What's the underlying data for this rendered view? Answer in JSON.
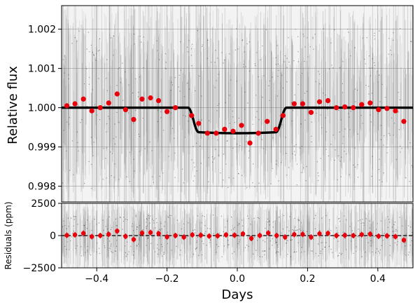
{
  "chart_data": [
    {
      "type": "scatter",
      "panel": "top",
      "ylabel": "Relative flux",
      "xlim": [
        -0.5,
        0.5
      ],
      "ylim": [
        0.9976,
        1.0026
      ],
      "yticks": [
        0.998,
        0.999,
        1.0,
        1.001,
        1.002
      ],
      "ytick_labels": [
        "0.998",
        "0.999",
        "1.000",
        "1.001",
        "1.002"
      ],
      "grid": true,
      "point_color": "#e8000b",
      "model_color": "#000000",
      "raw_data_color": "#555555",
      "model": {
        "baseline": 1.0,
        "depth_flux": 0.99935,
        "ingress": [
          -0.14,
          -0.11
        ],
        "egress": [
          0.11,
          0.14
        ]
      },
      "binned_points": [
        {
          "x": -0.485,
          "y": 1.00005,
          "err": 0.00012
        },
        {
          "x": -0.462,
          "y": 1.0001,
          "err": 0.00012
        },
        {
          "x": -0.438,
          "y": 1.00022,
          "err": 0.00012
        },
        {
          "x": -0.414,
          "y": 0.99992,
          "err": 0.00012
        },
        {
          "x": -0.39,
          "y": 1.0,
          "err": 0.00012
        },
        {
          "x": -0.366,
          "y": 1.00012,
          "err": 0.00012
        },
        {
          "x": -0.342,
          "y": 1.00035,
          "err": 0.00012
        },
        {
          "x": -0.318,
          "y": 0.99995,
          "err": 0.00012
        },
        {
          "x": -0.295,
          "y": 0.9997,
          "err": 0.00012
        },
        {
          "x": -0.271,
          "y": 1.00022,
          "err": 0.00012
        },
        {
          "x": -0.247,
          "y": 1.00025,
          "err": 0.00012
        },
        {
          "x": -0.224,
          "y": 1.00018,
          "err": 0.00012
        },
        {
          "x": -0.2,
          "y": 0.9999,
          "err": 0.00012
        },
        {
          "x": -0.176,
          "y": 1.0,
          "err": 0.00012
        },
        {
          "x": -0.13,
          "y": 0.9998,
          "err": 0.00012
        },
        {
          "x": -0.11,
          "y": 0.9996,
          "err": 0.00012
        },
        {
          "x": -0.085,
          "y": 0.99935,
          "err": 0.00012
        },
        {
          "x": -0.06,
          "y": 0.99935,
          "err": 0.00012
        },
        {
          "x": -0.036,
          "y": 0.99945,
          "err": 0.00012
        },
        {
          "x": -0.012,
          "y": 0.9994,
          "err": 0.00012
        },
        {
          "x": 0.012,
          "y": 0.99955,
          "err": 0.00012
        },
        {
          "x": 0.036,
          "y": 0.9991,
          "err": 0.00012
        },
        {
          "x": 0.06,
          "y": 0.99935,
          "err": 0.00012
        },
        {
          "x": 0.085,
          "y": 0.99965,
          "err": 0.00012
        },
        {
          "x": 0.11,
          "y": 0.99945,
          "err": 0.00012
        },
        {
          "x": 0.13,
          "y": 0.9998,
          "err": 0.00012
        },
        {
          "x": 0.162,
          "y": 1.0001,
          "err": 0.00012
        },
        {
          "x": 0.186,
          "y": 1.0001,
          "err": 0.00012
        },
        {
          "x": 0.21,
          "y": 0.99988,
          "err": 0.00012
        },
        {
          "x": 0.234,
          "y": 1.00015,
          "err": 0.00012
        },
        {
          "x": 0.258,
          "y": 1.00018,
          "err": 0.00012
        },
        {
          "x": 0.282,
          "y": 1.0,
          "err": 0.00012
        },
        {
          "x": 0.306,
          "y": 1.00002,
          "err": 0.00012
        },
        {
          "x": 0.33,
          "y": 1.0,
          "err": 0.00012
        },
        {
          "x": 0.354,
          "y": 1.00008,
          "err": 0.00012
        },
        {
          "x": 0.378,
          "y": 1.00012,
          "err": 0.00012
        },
        {
          "x": 0.402,
          "y": 0.99995,
          "err": 0.00012
        },
        {
          "x": 0.426,
          "y": 0.99998,
          "err": 0.00012
        },
        {
          "x": 0.45,
          "y": 0.99992,
          "err": 0.00012
        },
        {
          "x": 0.474,
          "y": 0.99965,
          "err": 0.00012
        }
      ]
    },
    {
      "type": "scatter",
      "panel": "bottom",
      "ylabel": "Residuals (ppm)",
      "xlabel": "Days",
      "xlim": [
        -0.5,
        0.5
      ],
      "ylim": [
        -2500,
        2500
      ],
      "xticks": [
        -0.4,
        -0.2,
        0.0,
        0.2,
        0.4
      ],
      "xtick_labels": [
        "−0.4",
        "−0.2",
        "0.0",
        "0.2",
        "0.4"
      ],
      "yticks": [
        -2500,
        0,
        2500
      ],
      "ytick_labels": [
        "−2500",
        "0",
        "2500"
      ],
      "grid": true,
      "point_color": "#e8000b",
      "zero_line": 0,
      "binned_points": [
        {
          "x": -0.485,
          "y": 20
        },
        {
          "x": -0.462,
          "y": 60
        },
        {
          "x": -0.438,
          "y": 180
        },
        {
          "x": -0.414,
          "y": -80
        },
        {
          "x": -0.39,
          "y": 0
        },
        {
          "x": -0.366,
          "y": 100
        },
        {
          "x": -0.342,
          "y": 350
        },
        {
          "x": -0.318,
          "y": -60
        },
        {
          "x": -0.295,
          "y": -300
        },
        {
          "x": -0.271,
          "y": 200
        },
        {
          "x": -0.247,
          "y": 240
        },
        {
          "x": -0.224,
          "y": 160
        },
        {
          "x": -0.2,
          "y": -100
        },
        {
          "x": -0.176,
          "y": 0
        },
        {
          "x": -0.152,
          "y": -120
        },
        {
          "x": -0.128,
          "y": 60
        },
        {
          "x": -0.104,
          "y": 30
        },
        {
          "x": -0.08,
          "y": -40
        },
        {
          "x": -0.056,
          "y": -20
        },
        {
          "x": -0.032,
          "y": 60
        },
        {
          "x": -0.008,
          "y": 30
        },
        {
          "x": 0.016,
          "y": 140
        },
        {
          "x": 0.04,
          "y": -220
        },
        {
          "x": 0.064,
          "y": 10
        },
        {
          "x": 0.088,
          "y": 200
        },
        {
          "x": 0.112,
          "y": 0
        },
        {
          "x": 0.136,
          "y": -120
        },
        {
          "x": 0.162,
          "y": 90
        },
        {
          "x": 0.186,
          "y": 100
        },
        {
          "x": 0.21,
          "y": -120
        },
        {
          "x": 0.234,
          "y": 150
        },
        {
          "x": 0.258,
          "y": 180
        },
        {
          "x": 0.282,
          "y": 0
        },
        {
          "x": 0.306,
          "y": 20
        },
        {
          "x": 0.33,
          "y": 0
        },
        {
          "x": 0.354,
          "y": 80
        },
        {
          "x": 0.378,
          "y": 120
        },
        {
          "x": 0.402,
          "y": -50
        },
        {
          "x": 0.426,
          "y": -20
        },
        {
          "x": 0.45,
          "y": -80
        },
        {
          "x": 0.474,
          "y": -350
        }
      ]
    }
  ]
}
